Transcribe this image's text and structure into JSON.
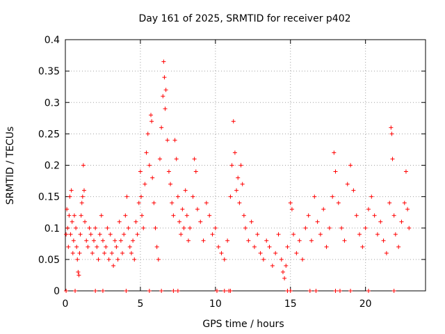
{
  "chart_data": {
    "type": "scatter",
    "title": "Day 161 of 2025, SRMTID for receiver p402",
    "xlabel": "GPS time / hours",
    "ylabel": "SRMTID / TECUs",
    "xlim": [
      0,
      24
    ],
    "ylim": [
      0,
      0.4
    ],
    "xticks": [
      0,
      5,
      10,
      15,
      20
    ],
    "xtick_labels": [
      "0",
      "5",
      "10",
      "15",
      "20"
    ],
    "yticks": [
      0,
      0.05,
      0.1,
      0.15,
      0.2,
      0.25,
      0.3,
      0.35,
      0.4
    ],
    "ytick_labels": [
      "0",
      "0.05",
      "0.1",
      "0.15",
      "0.2",
      "0.25",
      "0.3",
      "0.35",
      "0.4"
    ],
    "grid": true,
    "marker": "+",
    "series": [
      {
        "name": "SRMTID",
        "color": "#ff0000",
        "points": [
          [
            0.05,
            0.09
          ],
          [
            0.1,
            0.13
          ],
          [
            0.15,
            0.1
          ],
          [
            0.2,
            0.07
          ],
          [
            0.25,
            0.12
          ],
          [
            0.3,
            0.15
          ],
          [
            0.35,
            0.09
          ],
          [
            0.4,
            0.16
          ],
          [
            0.45,
            0.11
          ],
          [
            0.5,
            0.06
          ],
          [
            0.55,
            0.08
          ],
          [
            0.6,
            0.12
          ],
          [
            0.7,
            0.1
          ],
          [
            0.75,
            0.07
          ],
          [
            0.8,
            0.05
          ],
          [
            0.85,
            0.03
          ],
          [
            0.9,
            0.025
          ],
          [
            0.95,
            0.06
          ],
          [
            1.0,
            0.09
          ],
          [
            1.05,
            0.12
          ],
          [
            1.1,
            0.14
          ],
          [
            1.15,
            0.15
          ],
          [
            1.2,
            0.2
          ],
          [
            1.25,
            0.16
          ],
          [
            1.3,
            0.11
          ],
          [
            1.4,
            0.08
          ],
          [
            1.5,
            0.07
          ],
          [
            1.6,
            0.1
          ],
          [
            1.7,
            0.09
          ],
          [
            1.8,
            0.06
          ],
          [
            1.9,
            0.08
          ],
          [
            2.0,
            0.1
          ],
          [
            2.1,
            0.07
          ],
          [
            2.2,
            0.05
          ],
          [
            2.3,
            0.09
          ],
          [
            2.4,
            0.12
          ],
          [
            2.5,
            0.08
          ],
          [
            2.6,
            0.06
          ],
          [
            2.7,
            0.07
          ],
          [
            2.8,
            0.1
          ],
          [
            2.9,
            0.05
          ],
          [
            3.0,
            0.09
          ],
          [
            3.1,
            0.06
          ],
          [
            3.2,
            0.04
          ],
          [
            3.3,
            0.08
          ],
          [
            3.4,
            0.07
          ],
          [
            3.5,
            0.05
          ],
          [
            3.6,
            0.11
          ],
          [
            3.7,
            0.08
          ],
          [
            3.8,
            0.06
          ],
          [
            3.9,
            0.09
          ],
          [
            4.0,
            0.12
          ],
          [
            4.1,
            0.15
          ],
          [
            4.2,
            0.1
          ],
          [
            4.3,
            0.07
          ],
          [
            4.4,
            0.06
          ],
          [
            4.5,
            0.08
          ],
          [
            4.6,
            0.05
          ],
          [
            4.7,
            0.11
          ],
          [
            4.8,
            0.09
          ],
          [
            4.9,
            0.14
          ],
          [
            5.0,
            0.19
          ],
          [
            5.05,
            0.15
          ],
          [
            5.1,
            0.12
          ],
          [
            5.2,
            0.1
          ],
          [
            5.3,
            0.17
          ],
          [
            5.4,
            0.22
          ],
          [
            5.5,
            0.25
          ],
          [
            5.6,
            0.2
          ],
          [
            5.7,
            0.28
          ],
          [
            5.75,
            0.27
          ],
          [
            5.8,
            0.18
          ],
          [
            5.9,
            0.14
          ],
          [
            6.0,
            0.1
          ],
          [
            6.1,
            0.07
          ],
          [
            6.2,
            0.05
          ],
          [
            6.3,
            0.21
          ],
          [
            6.4,
            0.26
          ],
          [
            6.5,
            0.31
          ],
          [
            6.55,
            0.365
          ],
          [
            6.6,
            0.34
          ],
          [
            6.65,
            0.29
          ],
          [
            6.7,
            0.32
          ],
          [
            6.8,
            0.24
          ],
          [
            6.9,
            0.19
          ],
          [
            7.0,
            0.17
          ],
          [
            7.1,
            0.14
          ],
          [
            7.2,
            0.12
          ],
          [
            7.3,
            0.24
          ],
          [
            7.4,
            0.21
          ],
          [
            7.5,
            0.15
          ],
          [
            7.6,
            0.11
          ],
          [
            7.7,
            0.09
          ],
          [
            7.8,
            0.13
          ],
          [
            7.9,
            0.1
          ],
          [
            8.0,
            0.16
          ],
          [
            8.1,
            0.12
          ],
          [
            8.2,
            0.08
          ],
          [
            8.3,
            0.1
          ],
          [
            8.5,
            0.15
          ],
          [
            8.6,
            0.21
          ],
          [
            8.7,
            0.19
          ],
          [
            8.8,
            0.13
          ],
          [
            9.0,
            0.11
          ],
          [
            9.2,
            0.08
          ],
          [
            9.4,
            0.14
          ],
          [
            9.6,
            0.12
          ],
          [
            9.8,
            0.09
          ],
          [
            10.0,
            0.1
          ],
          [
            10.2,
            0.07
          ],
          [
            10.4,
            0.06
          ],
          [
            10.6,
            0.05
          ],
          [
            10.8,
            0.08
          ],
          [
            11.0,
            0.15
          ],
          [
            11.1,
            0.2
          ],
          [
            11.2,
            0.27
          ],
          [
            11.3,
            0.22
          ],
          [
            11.4,
            0.16
          ],
          [
            11.5,
            0.18
          ],
          [
            11.6,
            0.14
          ],
          [
            11.7,
            0.2
          ],
          [
            11.8,
            0.17
          ],
          [
            11.9,
            0.12
          ],
          [
            12.0,
            0.1
          ],
          [
            12.2,
            0.08
          ],
          [
            12.4,
            0.11
          ],
          [
            12.6,
            0.07
          ],
          [
            12.8,
            0.09
          ],
          [
            13.0,
            0.06
          ],
          [
            13.2,
            0.05
          ],
          [
            13.4,
            0.08
          ],
          [
            13.6,
            0.07
          ],
          [
            13.8,
            0.04
          ],
          [
            14.0,
            0.06
          ],
          [
            14.2,
            0.09
          ],
          [
            14.4,
            0.05
          ],
          [
            14.5,
            0.03
          ],
          [
            14.6,
            0.02
          ],
          [
            14.7,
            0.04
          ],
          [
            14.8,
            0.07
          ],
          [
            15.0,
            0.14
          ],
          [
            15.1,
            0.13
          ],
          [
            15.2,
            0.09
          ],
          [
            15.4,
            0.06
          ],
          [
            15.6,
            0.08
          ],
          [
            15.8,
            0.05
          ],
          [
            16.0,
            0.1
          ],
          [
            16.2,
            0.12
          ],
          [
            16.4,
            0.08
          ],
          [
            16.6,
            0.15
          ],
          [
            16.8,
            0.11
          ],
          [
            17.0,
            0.09
          ],
          [
            17.2,
            0.13
          ],
          [
            17.4,
            0.07
          ],
          [
            17.6,
            0.1
          ],
          [
            17.8,
            0.15
          ],
          [
            17.9,
            0.22
          ],
          [
            18.0,
            0.19
          ],
          [
            18.2,
            0.14
          ],
          [
            18.4,
            0.1
          ],
          [
            18.6,
            0.08
          ],
          [
            18.8,
            0.17
          ],
          [
            19.0,
            0.2
          ],
          [
            19.2,
            0.16
          ],
          [
            19.4,
            0.12
          ],
          [
            19.6,
            0.09
          ],
          [
            19.8,
            0.07
          ],
          [
            20.0,
            0.1
          ],
          [
            20.2,
            0.13
          ],
          [
            20.4,
            0.15
          ],
          [
            20.6,
            0.12
          ],
          [
            20.8,
            0.09
          ],
          [
            21.0,
            0.11
          ],
          [
            21.2,
            0.08
          ],
          [
            21.4,
            0.06
          ],
          [
            21.6,
            0.14
          ],
          [
            21.7,
            0.26
          ],
          [
            21.75,
            0.25
          ],
          [
            21.8,
            0.21
          ],
          [
            21.9,
            0.12
          ],
          [
            22.0,
            0.09
          ],
          [
            22.2,
            0.07
          ],
          [
            22.4,
            0.11
          ],
          [
            22.6,
            0.14
          ],
          [
            22.7,
            0.19
          ],
          [
            22.8,
            0.13
          ],
          [
            22.9,
            0.1
          ]
        ],
        "zero_points": [
          0.05,
          0.65,
          2.0,
          2.5,
          4.05,
          5.6,
          6.4,
          7.2,
          7.5,
          10.1,
          10.6,
          10.9,
          11.0,
          14.8,
          15.0,
          16.3,
          16.7,
          18.0,
          18.3,
          19.0,
          20.2,
          21.9
        ]
      }
    ]
  }
}
